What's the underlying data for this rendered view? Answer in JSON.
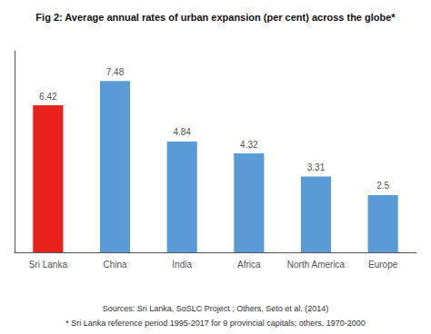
{
  "chart_data": {
    "type": "bar",
    "title": "Fig 2: Average annual rates of urban expansion (per cent) across the globe*",
    "categories": [
      "Sri Lanka",
      "China",
      "India",
      "Africa",
      "North America",
      "Europe"
    ],
    "values": [
      6.42,
      7.48,
      4.84,
      4.32,
      3.31,
      2.5
    ],
    "colors": [
      "#e8211d",
      "#5b9bd5",
      "#5b9bd5",
      "#5b9bd5",
      "#5b9bd5",
      "#5b9bd5"
    ],
    "ylim": [
      0,
      8.8
    ],
    "data_labels": true,
    "grid": false,
    "tick_labels": "x",
    "annotations": [
      "Sources: Sri Lanka, SoSLC Project ; Others, Seto et al. (2014)",
      "* Sri Lanka reference period 1995-2017 for 9 provincial capitals; others, 1970-2000"
    ]
  }
}
